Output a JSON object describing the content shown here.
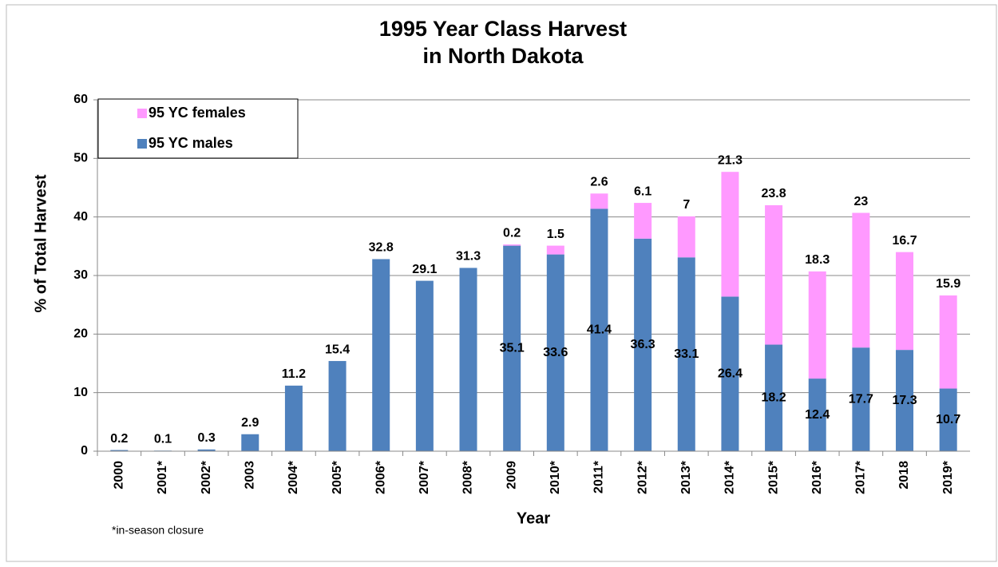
{
  "chart_data": {
    "type": "stacked_bar",
    "title": [
      "1995 Year Class Harvest",
      "in North Dakota"
    ],
    "xlabel": "Year",
    "ylabel": "% of Total Harvest",
    "note": "*in-season closure",
    "categories": [
      "2000",
      "2001*",
      "2002*",
      "2003",
      "2004*",
      "2005*",
      "2006*",
      "2007*",
      "2008*",
      "2009",
      "2010*",
      "2011*",
      "2012*",
      "2013*",
      "2014*",
      "2015*",
      "2016*",
      "2017*",
      "2018",
      "2019*"
    ],
    "series": [
      {
        "name": "95 YC males",
        "color": "#4f81bd",
        "values": [
          0.2,
          0.1,
          0.3,
          2.9,
          11.2,
          15.4,
          32.8,
          29.1,
          31.3,
          35.1,
          33.6,
          41.4,
          36.3,
          33.1,
          26.4,
          18.2,
          12.4,
          17.7,
          17.3,
          10.7
        ]
      },
      {
        "name": "95 YC females",
        "color": "#ff99ff",
        "values": [
          null,
          null,
          null,
          null,
          null,
          null,
          null,
          null,
          null,
          0.2,
          1.5,
          2.6,
          6.1,
          7,
          21.3,
          23.8,
          18.3,
          23,
          16.7,
          15.9
        ]
      }
    ],
    "ylim": [
      0,
      60
    ],
    "yticks": [
      0,
      10,
      20,
      30,
      40,
      50,
      60
    ],
    "grid": true
  }
}
